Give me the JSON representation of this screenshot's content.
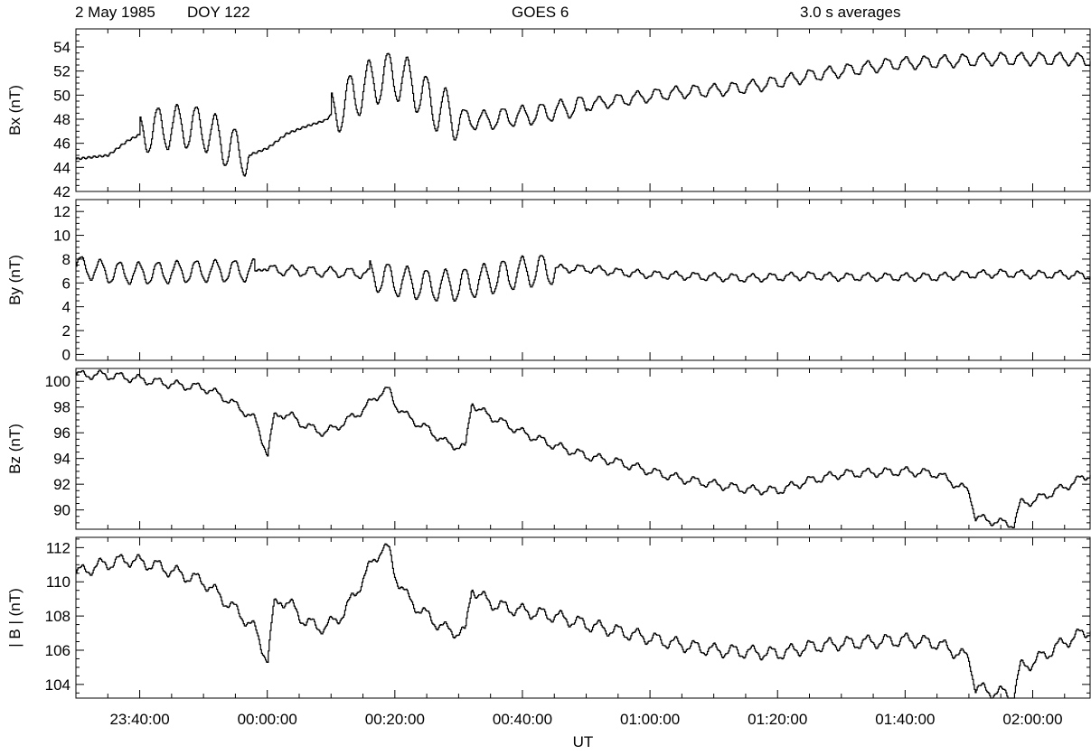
{
  "header": {
    "date": "2 May 1985",
    "doy": "DOY 122",
    "satellite": "GOES 6",
    "averaging": "3.0 s averages"
  },
  "chart_data": [
    {
      "type": "line",
      "ylabel": "Bx (nT)",
      "ylim": [
        42,
        55.5
      ],
      "yticks": [
        42,
        44,
        46,
        48,
        50,
        52,
        54
      ],
      "x_start": "23:30:00",
      "x_end": "02:09:00",
      "xticks": [
        "23:40:00",
        "00:00:00",
        "00:20:00",
        "00:40:00",
        "01:00:00",
        "01:20:00",
        "01:40:00",
        "02:00:00"
      ],
      "xlabel": "",
      "series": [
        {
          "x_minutes": [
            0,
            5,
            8,
            11,
            14,
            17,
            20,
            22,
            24,
            27,
            30,
            33,
            36,
            39,
            42,
            45,
            48,
            50,
            53,
            55,
            58,
            61,
            64,
            68,
            72,
            76,
            80,
            84,
            88,
            92,
            96,
            100,
            104,
            108,
            112,
            116,
            120,
            124,
            128,
            132,
            136,
            140,
            144,
            148,
            152,
            156,
            159
          ],
          "y": [
            44.7,
            45.0,
            46.2,
            47.0,
            47.3,
            47.4,
            47.2,
            46.5,
            45.6,
            45.0,
            45.6,
            46.8,
            47.4,
            47.9,
            49.3,
            50.6,
            51.5,
            51.6,
            50.8,
            49.5,
            48.5,
            48.0,
            47.9,
            48.2,
            48.4,
            48.8,
            49.2,
            49.5,
            49.8,
            50.1,
            50.3,
            50.4,
            50.6,
            50.9,
            51.3,
            51.7,
            52.0,
            52.3,
            52.6,
            52.7,
            52.8,
            52.9,
            53.0,
            53.0,
            53.0,
            53.0,
            52.9
          ],
          "oscillation": [
            {
              "from_min": 10,
              "to_min": 27,
              "amplitude_nT": 1.8
            },
            {
              "from_min": 40,
              "to_min": 60,
              "amplitude_nT": 2.0
            },
            {
              "from_min": 60,
              "to_min": 80,
              "amplitude_nT": 0.8
            },
            {
              "from_min": 80,
              "to_min": 159,
              "amplitude_nT": 0.5
            }
          ]
        }
      ]
    },
    {
      "type": "line",
      "ylabel": "By (nT)",
      "ylim": [
        -0.5,
        13
      ],
      "yticks": [
        0,
        2,
        4,
        6,
        8,
        10,
        12
      ],
      "x_start": "23:30:00",
      "x_end": "02:09:00",
      "series": [
        {
          "x_minutes": [
            0,
            5,
            10,
            15,
            20,
            25,
            30,
            35,
            40,
            45,
            50,
            55,
            60,
            65,
            70,
            75,
            80,
            85,
            90,
            95,
            100,
            105,
            110,
            115,
            120,
            125,
            130,
            135,
            140,
            145,
            150,
            155,
            159
          ],
          "y": [
            7.4,
            6.9,
            6.8,
            6.9,
            7.0,
            7.0,
            7.1,
            7.0,
            6.9,
            6.8,
            6.2,
            5.8,
            5.8,
            6.4,
            6.9,
            7.2,
            7.2,
            6.9,
            6.7,
            6.6,
            6.5,
            6.4,
            6.5,
            6.6,
            6.5,
            6.5,
            6.5,
            6.5,
            6.7,
            6.8,
            6.7,
            6.7,
            6.6
          ],
          "oscillation": [
            {
              "from_min": 0,
              "to_min": 28,
              "amplitude_nT": 0.9
            },
            {
              "from_min": 30,
              "to_min": 46,
              "amplitude_nT": 0.4
            },
            {
              "from_min": 46,
              "to_min": 75,
              "amplitude_nT": 1.3
            },
            {
              "from_min": 75,
              "to_min": 159,
              "amplitude_nT": 0.3
            }
          ]
        }
      ]
    },
    {
      "type": "line",
      "ylabel": "Bz (nT)",
      "ylim": [
        88.5,
        101
      ],
      "yticks": [
        90,
        92,
        94,
        96,
        98,
        100
      ],
      "x_start": "23:30:00",
      "x_end": "02:09:00",
      "series": [
        {
          "x_minutes": [
            0,
            4,
            8,
            12,
            16,
            20,
            23,
            26,
            28,
            30,
            31,
            32,
            34,
            36,
            39,
            42,
            45,
            47,
            48,
            49,
            50,
            52,
            55,
            58,
            61,
            62,
            63,
            66,
            70,
            75,
            80,
            85,
            90,
            95,
            100,
            105,
            110,
            115,
            120,
            125,
            130,
            135,
            140,
            141,
            143,
            145,
            147,
            148,
            150,
            155,
            159
          ],
          "y": [
            100.5,
            100.5,
            100.3,
            100.0,
            99.7,
            99.5,
            98.8,
            97.8,
            97.0,
            94.3,
            97.2,
            97.5,
            97.2,
            96.5,
            96.0,
            96.8,
            97.8,
            98.8,
            99.2,
            99.3,
            98.2,
            97.2,
            96.3,
            95.2,
            94.8,
            98.5,
            97.8,
            97.0,
            96.0,
            95.0,
            94.2,
            93.7,
            93.0,
            92.4,
            92.0,
            91.6,
            91.5,
            92.3,
            92.8,
            92.9,
            93.0,
            92.8,
            91.4,
            89.4,
            89.2,
            89.0,
            88.9,
            90.5,
            90.7,
            91.8,
            92.8
          ],
          "oscillation": [
            {
              "from_min": 0,
              "to_min": 159,
              "amplitude_nT": 0.3
            }
          ]
        }
      ]
    },
    {
      "type": "line",
      "ylabel": "| B | (nT)",
      "ylim": [
        103.2,
        112.6
      ],
      "yticks": [
        104,
        106,
        108,
        110,
        112
      ],
      "x_start": "23:30:00",
      "x_end": "02:09:00",
      "xticks": [
        "23:40:00",
        "00:00:00",
        "00:20:00",
        "00:40:00",
        "01:00:00",
        "01:20:00",
        "01:40:00",
        "02:00:00"
      ],
      "xlabel": "UT",
      "series": [
        {
          "x_minutes": [
            0,
            4,
            8,
            12,
            16,
            20,
            23,
            26,
            28,
            30,
            31,
            32,
            34,
            36,
            39,
            42,
            45,
            47,
            48,
            49,
            50,
            52,
            55,
            58,
            61,
            62,
            63,
            66,
            70,
            75,
            80,
            85,
            90,
            95,
            100,
            105,
            110,
            115,
            120,
            125,
            130,
            135,
            140,
            141,
            143,
            145,
            147,
            148,
            150,
            155,
            159
          ],
          "y": [
            110.5,
            111.0,
            111.3,
            111.0,
            110.5,
            110.0,
            109.0,
            108.0,
            107.2,
            105.4,
            108.6,
            109.0,
            108.5,
            107.6,
            107.3,
            108.2,
            110.2,
            111.5,
            112.0,
            111.8,
            110.4,
            109.0,
            108.0,
            107.2,
            107.0,
            109.8,
            109.2,
            108.6,
            108.3,
            108.0,
            107.5,
            107.1,
            106.7,
            106.3,
            106.0,
            105.9,
            105.8,
            106.2,
            106.4,
            106.5,
            106.6,
            106.4,
            105.5,
            103.8,
            103.6,
            103.5,
            103.4,
            105.0,
            105.3,
            106.5,
            107.2
          ],
          "oscillation": [
            {
              "from_min": 0,
              "to_min": 159,
              "amplitude_nT": 0.35
            }
          ]
        }
      ]
    }
  ]
}
